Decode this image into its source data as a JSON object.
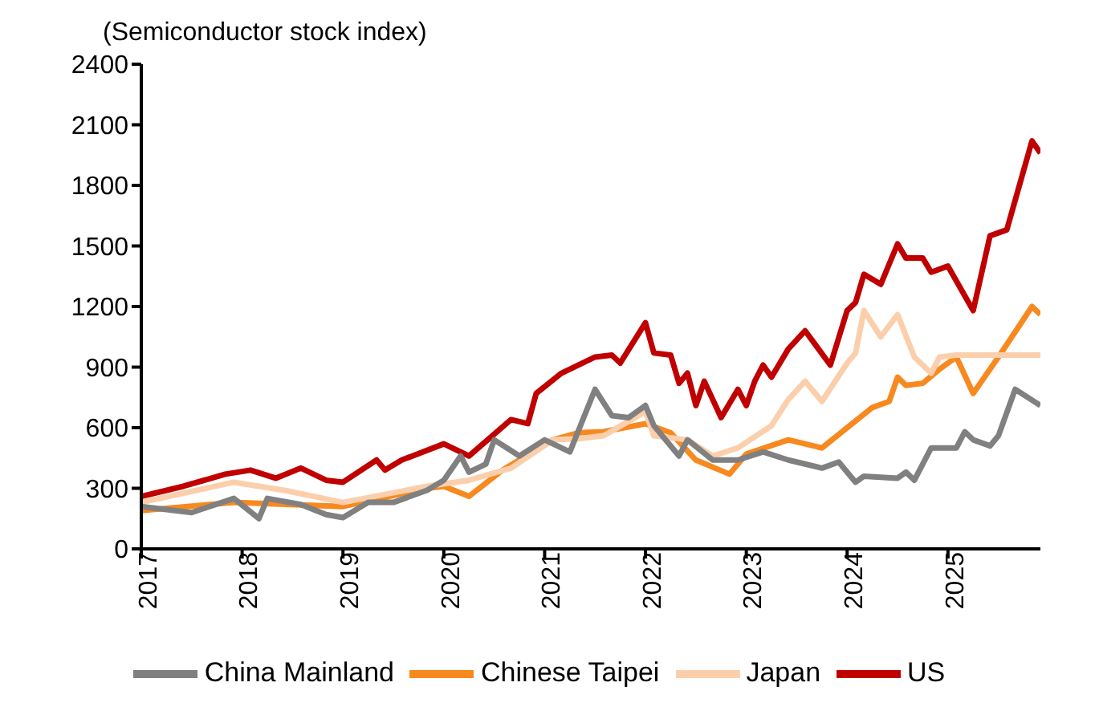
{
  "chart_data": {
    "type": "line",
    "ylabel": "(Semiconductor stock index)",
    "xlim": [
      "2017-01",
      "2025-12"
    ],
    "xticks": [
      "2017",
      "2018",
      "2019",
      "2020",
      "2021",
      "2022",
      "2023",
      "2024",
      "2025"
    ],
    "ylim": [
      0,
      2400
    ],
    "yticks": [
      0,
      300,
      600,
      900,
      1200,
      1500,
      1800,
      2100,
      2400
    ],
    "grid": false,
    "legend": "bottom",
    "marker": "none",
    "line_style": "solid",
    "series": [
      {
        "name": "US",
        "color": "#c00000",
        "x": [
          "2017-01",
          "2017-06",
          "2017-11",
          "2018-02",
          "2018-05",
          "2018-08",
          "2018-11",
          "2019-01",
          "2019-05",
          "2019-06",
          "2019-08",
          "2020-01",
          "2020-04",
          "2020-09",
          "2020-11",
          "2020-12",
          "2021-03",
          "2021-07",
          "2021-09",
          "2021-10",
          "2022-01",
          "2022-02",
          "2022-04",
          "2022-05",
          "2022-06",
          "2022-07",
          "2022-08",
          "2022-10",
          "2022-12",
          "2023-01",
          "2023-02",
          "2023-03",
          "2023-04",
          "2023-06",
          "2023-08",
          "2023-11",
          "2024-01",
          "2024-02",
          "2024-03",
          "2024-05",
          "2024-07",
          "2024-08",
          "2024-10",
          "2024-11",
          "2025-01",
          "2025-04",
          "2025-06",
          "2025-08",
          "2025-11",
          "2025-12"
        ],
        "values": [
          260,
          310,
          370,
          390,
          350,
          400,
          340,
          330,
          440,
          390,
          440,
          520,
          460,
          640,
          620,
          770,
          870,
          950,
          960,
          920,
          1120,
          970,
          960,
          820,
          870,
          710,
          830,
          650,
          790,
          710,
          830,
          910,
          850,
          990,
          1080,
          910,
          1180,
          1220,
          1360,
          1310,
          1510,
          1440,
          1440,
          1370,
          1400,
          1180,
          1550,
          1580,
          2020,
          1960
        ]
      },
      {
        "name": "Chinese Taipei",
        "color": "#f7891f",
        "x": [
          "2017-01",
          "2017-12",
          "2019-01",
          "2019-11",
          "2020-01",
          "2020-04",
          "2020-08",
          "2021-02",
          "2021-05",
          "2021-08",
          "2022-01",
          "2022-04",
          "2022-07",
          "2022-11",
          "2023-01",
          "2023-06",
          "2023-10",
          "2024-01",
          "2024-04",
          "2024-06",
          "2024-07",
          "2024-08",
          "2024-10",
          "2024-12",
          "2025-02",
          "2025-04",
          "2025-07",
          "2025-11",
          "2025-12"
        ],
        "values": [
          190,
          230,
          210,
          300,
          310,
          260,
          390,
          540,
          575,
          580,
          620,
          575,
          440,
          370,
          470,
          540,
          500,
          600,
          700,
          730,
          850,
          810,
          820,
          890,
          950,
          770,
          950,
          1200,
          1160
        ]
      },
      {
        "name": "Japan",
        "color": "#fbcfab",
        "x": [
          "2017-01",
          "2017-12",
          "2018-06",
          "2019-01",
          "2019-11",
          "2020-04",
          "2020-09",
          "2021-02",
          "2021-05",
          "2021-08",
          "2022-01",
          "2022-02",
          "2022-06",
          "2022-09",
          "2022-12",
          "2023-04",
          "2023-06",
          "2023-08",
          "2023-10",
          "2024-01",
          "2024-02",
          "2024-03",
          "2024-05",
          "2024-07",
          "2024-09",
          "2024-11",
          "2024-12",
          "2025-02",
          "2025-12"
        ],
        "values": [
          230,
          330,
          290,
          230,
          310,
          340,
          400,
          540,
          545,
          560,
          680,
          560,
          540,
          460,
          500,
          610,
          740,
          830,
          730,
          920,
          970,
          1180,
          1050,
          1160,
          950,
          870,
          950,
          960,
          960
        ]
      },
      {
        "name": "China Mainland",
        "color": "#808080",
        "x": [
          "2017-01",
          "2017-07",
          "2017-12",
          "2018-03",
          "2018-04",
          "2018-08",
          "2018-11",
          "2019-01",
          "2019-04",
          "2019-07",
          "2019-11",
          "2020-01",
          "2020-03",
          "2020-04",
          "2020-06",
          "2020-07",
          "2020-10",
          "2021-01",
          "2021-04",
          "2021-07",
          "2021-09",
          "2021-11",
          "2022-01",
          "2022-02",
          "2022-05",
          "2022-06",
          "2022-09",
          "2022-12",
          "2023-03",
          "2023-06",
          "2023-10",
          "2023-12",
          "2024-02",
          "2024-03",
          "2024-07",
          "2024-08",
          "2024-09",
          "2024-11",
          "2025-02",
          "2025-03",
          "2025-04",
          "2025-06",
          "2025-07",
          "2025-09",
          "2025-12"
        ],
        "values": [
          210,
          180,
          250,
          150,
          250,
          220,
          170,
          155,
          230,
          230,
          290,
          340,
          460,
          380,
          420,
          540,
          460,
          540,
          480,
          790,
          660,
          650,
          710,
          610,
          460,
          540,
          440,
          440,
          480,
          440,
          400,
          430,
          330,
          360,
          350,
          380,
          340,
          500,
          500,
          580,
          540,
          510,
          560,
          790,
          710
        ]
      }
    ]
  }
}
